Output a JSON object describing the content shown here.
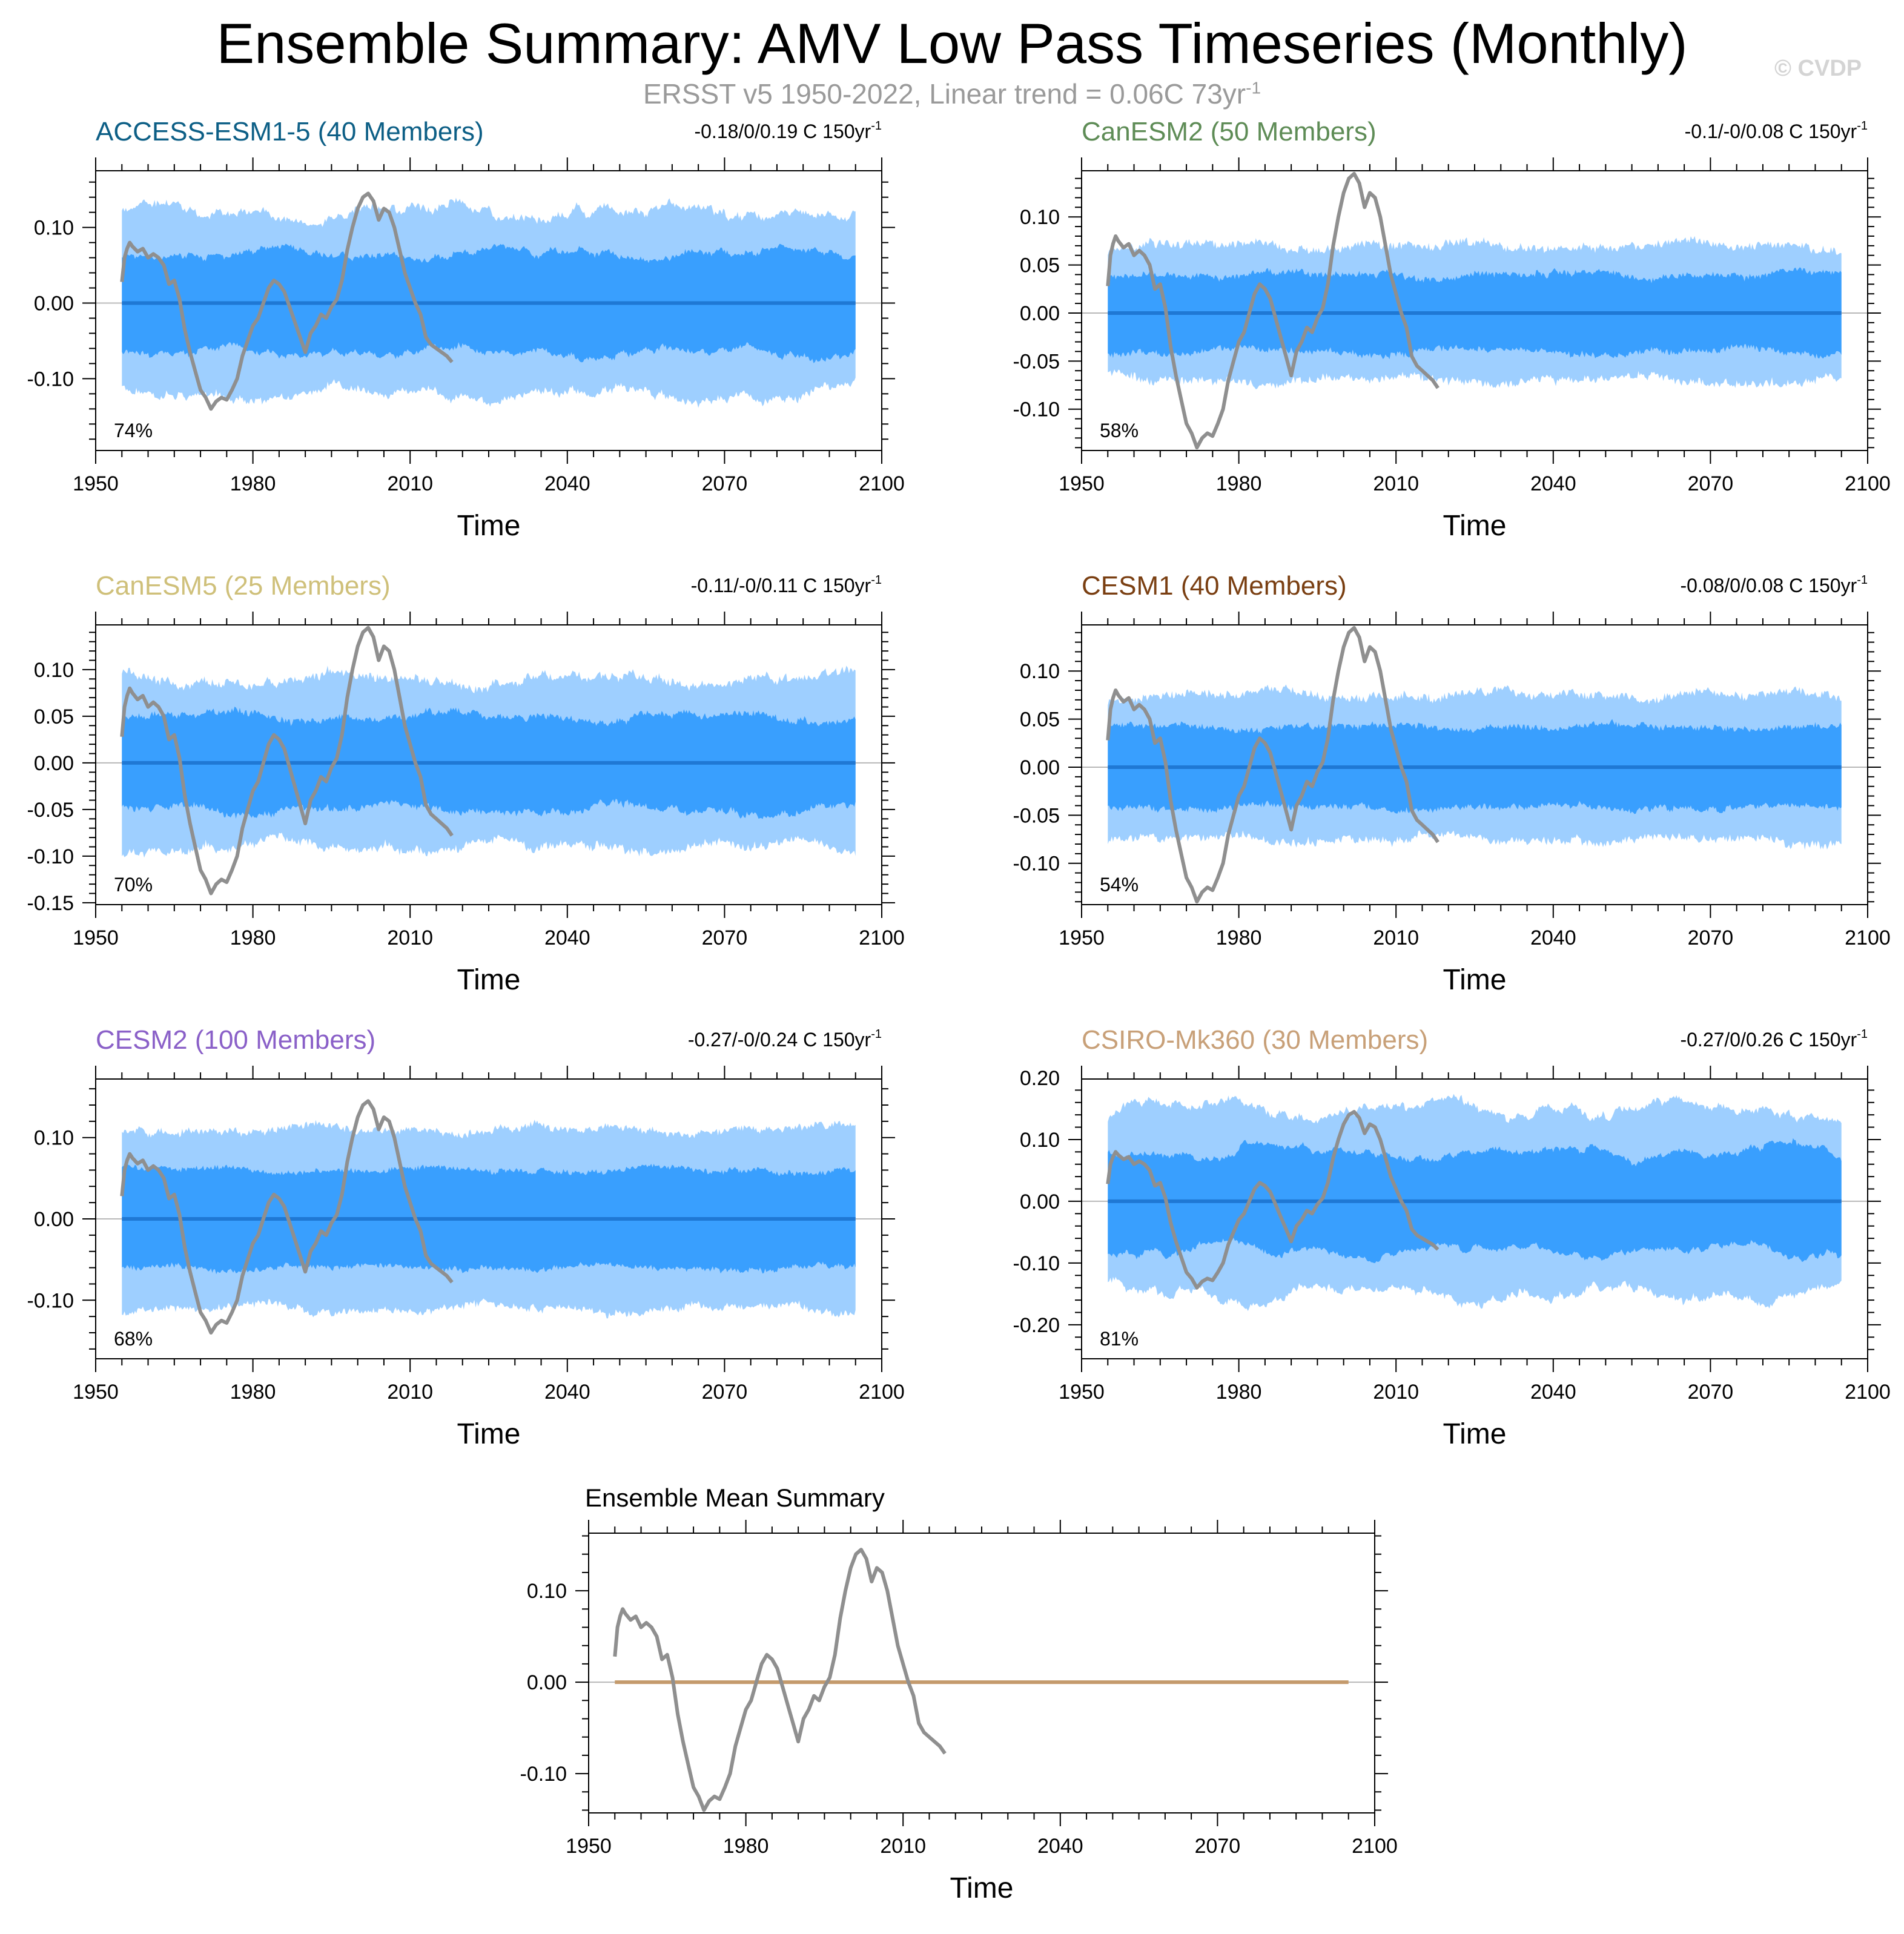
{
  "figure": {
    "title": "Ensemble Summary: AMV Low Pass Timeseries (Monthly)",
    "subtitle": "ERSST v5 1950-2022, Linear trend = 0.06C 73yr",
    "subtitle_sup": "-1",
    "watermark": "© CVDP"
  },
  "colors": {
    "outer_band": "#9ecfff",
    "inner_band": "#399ffe",
    "ensemble_mean": "#1f78d4",
    "observed": "#8f8f8f",
    "summary_mean": "#c49a6c"
  },
  "chart_data": [
    {
      "type": "area",
      "title": "ACCESS-ESM1-5 (40 Members)",
      "title_color": "#0d5f86",
      "trend": "-0.18/0/0.19 C 150yr",
      "trend_sup": "-1",
      "percent": "74%",
      "xlabel": "Time",
      "xlim": [
        1950,
        2100
      ],
      "ylim": [
        -0.195,
        0.175
      ],
      "xticks": [
        1950,
        1980,
        2010,
        2040,
        2070,
        2100
      ],
      "yticks": [
        0.1,
        0.0,
        -0.1
      ],
      "ytick_labels": [
        "0.10",
        "0.00",
        "-0.10"
      ],
      "band_years": [
        1955,
        2095
      ],
      "outer_half_width": 0.12,
      "inner_half_width": 0.065,
      "outer_amp": 0.03,
      "inner_amp": 0.02,
      "seed": 11
    },
    {
      "type": "area",
      "title": "CanESM2 (50 Members)",
      "title_color": "#5e8c56",
      "trend": "-0.1/-0/0.08 C 150yr",
      "trend_sup": "-1",
      "percent": "58%",
      "xlabel": "Time",
      "xlim": [
        1950,
        2100
      ],
      "ylim": [
        -0.143,
        0.148
      ],
      "xticks": [
        1950,
        1980,
        2010,
        2040,
        2070,
        2100
      ],
      "yticks": [
        0.1,
        0.05,
        0.0,
        -0.05,
        -0.1
      ],
      "ytick_labels": [
        "0.10",
        "0.05",
        "0.00",
        "-0.05",
        "-0.10"
      ],
      "band_years": [
        1955,
        2095
      ],
      "outer_half_width": 0.07,
      "inner_half_width": 0.04,
      "outer_amp": 0.012,
      "inner_amp": 0.01,
      "seed": 23
    },
    {
      "type": "area",
      "title": "CanESM5 (25 Members)",
      "title_color": "#cfc07a",
      "trend": "-0.11/-0/0.11 C 150yr",
      "trend_sup": "-1",
      "percent": "70%",
      "xlabel": "Time",
      "xlim": [
        1950,
        2100
      ],
      "ylim": [
        -0.152,
        0.148
      ],
      "xticks": [
        1950,
        1980,
        2010,
        2040,
        2070,
        2100
      ],
      "yticks": [
        0.1,
        0.05,
        0.0,
        -0.05,
        -0.1,
        -0.15
      ],
      "ytick_labels": [
        "0.10",
        "0.05",
        "0.00",
        "-0.05",
        "-0.10",
        "-0.15"
      ],
      "band_years": [
        1955,
        2095
      ],
      "outer_half_width": 0.09,
      "inner_half_width": 0.05,
      "outer_amp": 0.02,
      "inner_amp": 0.015,
      "seed": 37
    },
    {
      "type": "area",
      "title": "CESM1 (40 Members)",
      "title_color": "#7a3f12",
      "trend": "-0.08/0/0.08 C 150yr",
      "trend_sup": "-1",
      "percent": "54%",
      "xlabel": "Time",
      "xlim": [
        1950,
        2100
      ],
      "ylim": [
        -0.143,
        0.148
      ],
      "xticks": [
        1950,
        1980,
        2010,
        2040,
        2070,
        2100
      ],
      "yticks": [
        0.1,
        0.05,
        0.0,
        -0.05,
        -0.1
      ],
      "ytick_labels": [
        "0.10",
        "0.05",
        "0.00",
        "-0.05",
        "-0.10"
      ],
      "band_years": [
        1955,
        2095
      ],
      "outer_half_width": 0.075,
      "inner_half_width": 0.042,
      "outer_amp": 0.012,
      "inner_amp": 0.008,
      "seed": 41
    },
    {
      "type": "area",
      "title": "CESM2 (100 Members)",
      "title_color": "#8a60c8",
      "trend": "-0.27/-0/0.24 C 150yr",
      "trend_sup": "-1",
      "percent": "68%",
      "xlabel": "Time",
      "xlim": [
        1950,
        2100
      ],
      "ylim": [
        -0.172,
        0.172
      ],
      "xticks": [
        1950,
        1980,
        2010,
        2040,
        2070,
        2100
      ],
      "yticks": [
        0.1,
        0.0,
        -0.1
      ],
      "ytick_labels": [
        "0.10",
        "0.00",
        "-0.10"
      ],
      "band_years": [
        1955,
        2095
      ],
      "outer_half_width": 0.11,
      "inner_half_width": 0.06,
      "outer_amp": 0.015,
      "inner_amp": 0.01,
      "seed": 53
    },
    {
      "type": "area",
      "title": "CSIRO-Mk360 (30 Members)",
      "title_color": "#c8a078",
      "trend": "-0.27/0/0.26 C 150yr",
      "trend_sup": "-1",
      "percent": "81%",
      "xlabel": "Time",
      "xlim": [
        1950,
        2100
      ],
      "ylim": [
        -0.255,
        0.198
      ],
      "xticks": [
        1950,
        1980,
        2010,
        2040,
        2070,
        2100
      ],
      "yticks": [
        0.2,
        0.1,
        0.0,
        -0.1,
        -0.2
      ],
      "ytick_labels": [
        "0.20",
        "0.10",
        "0.00",
        "-0.10",
        "-0.20"
      ],
      "band_years": [
        1955,
        2095
      ],
      "outer_half_width": 0.15,
      "inner_half_width": 0.08,
      "outer_amp": 0.04,
      "inner_amp": 0.03,
      "seed": 67
    },
    {
      "type": "line",
      "title": "Ensemble Mean Summary",
      "title_color": "#000000",
      "xlabel": "Time",
      "xlim": [
        1950,
        2100
      ],
      "ylim": [
        -0.143,
        0.163
      ],
      "xticks": [
        1950,
        1980,
        2010,
        2040,
        2070,
        2100
      ],
      "yticks": [
        0.1,
        0.0,
        -0.1
      ],
      "ytick_labels": [
        "0.10",
        "0.00",
        "-0.10"
      ],
      "mean_line": {
        "x": [
          1955,
          2095
        ],
        "y": [
          0.0,
          0.0
        ]
      }
    }
  ],
  "observed_series": {
    "name": "ERSST v5 AMV (low pass)",
    "years": [
      1955,
      1955.5,
      1956,
      1956.5,
      1957,
      1958,
      1959,
      1960,
      1961,
      1962,
      1963,
      1964,
      1965,
      1966,
      1967,
      1968,
      1969,
      1970,
      1971,
      1972,
      1973,
      1974,
      1975,
      1976,
      1977,
      1978,
      1979,
      1980,
      1981,
      1982,
      1983,
      1984,
      1985,
      1986,
      1987,
      1988,
      1989,
      1990,
      1991,
      1992,
      1993,
      1994,
      1995,
      1996,
      1997,
      1998,
      1999,
      2000,
      2001,
      2002,
      2003,
      2004,
      2005,
      2006,
      2007,
      2008,
      2009,
      2010,
      2011,
      2012,
      2013,
      2014,
      2015,
      2016,
      2017,
      2018
    ],
    "values": [
      0.028,
      0.06,
      0.072,
      0.08,
      0.075,
      0.068,
      0.072,
      0.06,
      0.065,
      0.06,
      0.05,
      0.025,
      0.03,
      0.005,
      -0.035,
      -0.065,
      -0.09,
      -0.115,
      -0.125,
      -0.14,
      -0.13,
      -0.125,
      -0.128,
      -0.115,
      -0.1,
      -0.07,
      -0.05,
      -0.03,
      -0.02,
      0.0,
      0.02,
      0.03,
      0.025,
      0.015,
      -0.005,
      -0.025,
      -0.045,
      -0.065,
      -0.04,
      -0.03,
      -0.015,
      -0.02,
      -0.005,
      0.005,
      0.03,
      0.07,
      0.1,
      0.125,
      0.14,
      0.145,
      0.135,
      0.11,
      0.125,
      0.12,
      0.1,
      0.07,
      0.04,
      0.02,
      0.0,
      -0.015,
      -0.045,
      -0.055,
      -0.06,
      -0.065,
      -0.07,
      -0.078
    ]
  }
}
